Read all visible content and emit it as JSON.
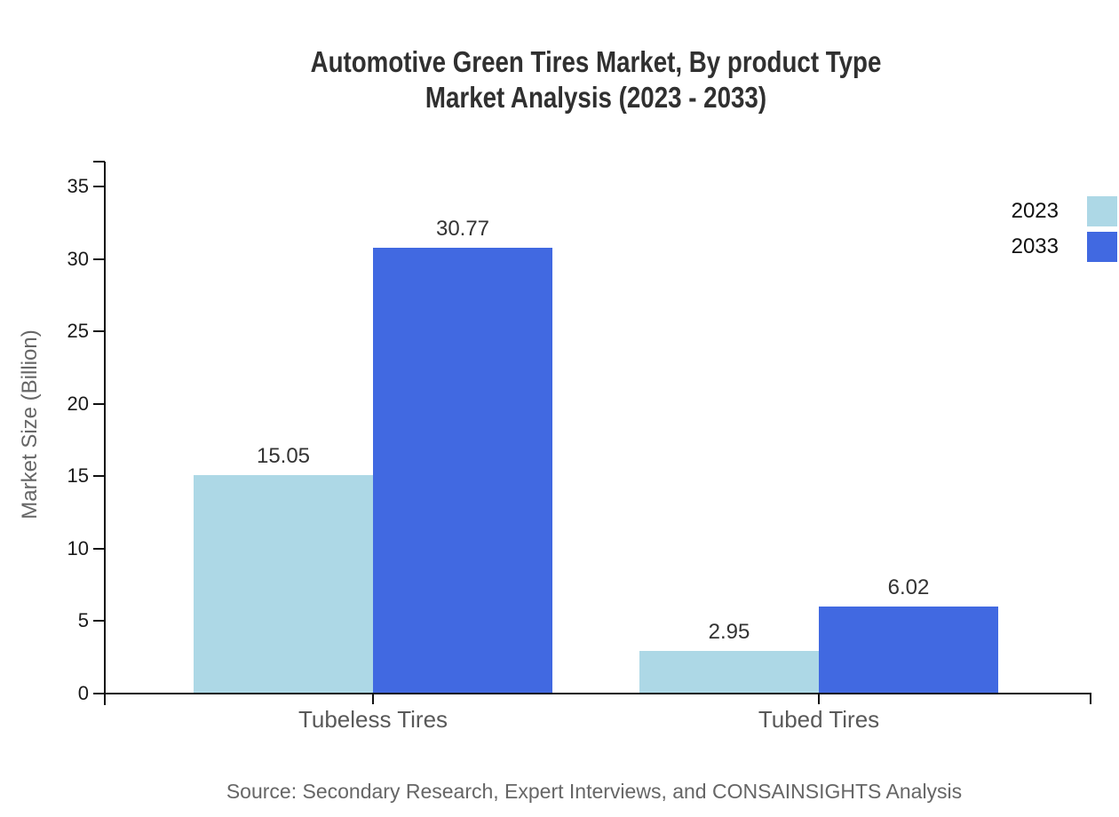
{
  "title": {
    "line1": "Automotive Green Tires Market, By product Type",
    "line2": "Market Analysis (2023 - 2033)"
  },
  "source": "Source: Secondary Research, Expert Interviews, and CONSAINSIGHTS Analysis",
  "chart_data": {
    "type": "bar",
    "title": "Automotive Green Tires Market, By product Type Market Analysis (2023 - 2033)",
    "categories": [
      "Tubeless Tires",
      "Tubed Tires"
    ],
    "series": [
      {
        "name": "2023",
        "color": "#ADD8E6",
        "values": [
          15.05,
          2.95
        ]
      },
      {
        "name": "2033",
        "color": "#4169E1",
        "values": [
          30.77,
          6.02
        ]
      }
    ],
    "xlabel": "",
    "ylabel": "Market Size (Billion)",
    "ylim": [
      0,
      35
    ],
    "ytick_step": 5,
    "yticks": [
      0,
      5,
      10,
      15,
      20,
      25,
      30,
      35
    ],
    "grid": false,
    "legend_position": "top-right",
    "value_label_format": "2-decimals",
    "axis_color": "#111111",
    "background_color": "#FFFFFF"
  }
}
